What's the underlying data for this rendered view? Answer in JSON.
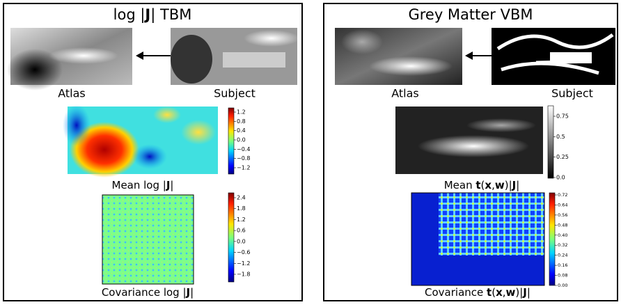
{
  "panels": [
    {
      "title": [
        {
          "text": "log |"
        },
        {
          "text": "J",
          "bold": true
        },
        {
          "text": "| TBM"
        }
      ],
      "atlas_label": "Atlas",
      "subject_label": "Subject",
      "mean": {
        "label": [
          {
            "text": "Mean log |"
          },
          {
            "text": "J",
            "bold": true
          },
          {
            "text": "|"
          }
        ],
        "colorbar_ticks": [
          "1.2",
          "0.8",
          "0.4",
          "0.0",
          "−0.4",
          "−0.8",
          "−1.2"
        ]
      },
      "covariance": {
        "label": [
          {
            "text": "Covariance log |"
          },
          {
            "text": "J",
            "bold": true
          },
          {
            "text": "|"
          }
        ],
        "colorbar_ticks": [
          "2.4",
          "1.8",
          "1.2",
          "0.6",
          "0.0",
          "−0.6",
          "−1.2",
          "−1.8"
        ]
      }
    },
    {
      "title": [
        {
          "text": "Grey Matter VBM"
        }
      ],
      "atlas_label": "Atlas",
      "subject_label": "Subject",
      "mean": {
        "label": [
          {
            "text": "Mean "
          },
          {
            "text": "t",
            "bold": true
          },
          {
            "text": "("
          },
          {
            "text": "x",
            "bold": true
          },
          {
            "text": ","
          },
          {
            "text": "w",
            "bold": true
          },
          {
            "text": ")|"
          },
          {
            "text": "J",
            "bold": true
          },
          {
            "text": "|"
          }
        ],
        "colorbar_ticks": [
          "0.75",
          "0.5",
          "0.25",
          "0.0"
        ]
      },
      "covariance": {
        "label": [
          {
            "text": "Covariance "
          },
          {
            "text": "t",
            "bold": true
          },
          {
            "text": "("
          },
          {
            "text": "x",
            "bold": true
          },
          {
            "text": ","
          },
          {
            "text": "w",
            "bold": true
          },
          {
            "text": ")|"
          },
          {
            "text": "J",
            "bold": true
          },
          {
            "text": "|"
          }
        ],
        "colorbar_ticks": [
          "0.72",
          "0.64",
          "0.56",
          "0.48",
          "0.40",
          "0.32",
          "0.24",
          "0.16",
          "0.08",
          "0.00"
        ]
      }
    }
  ]
}
